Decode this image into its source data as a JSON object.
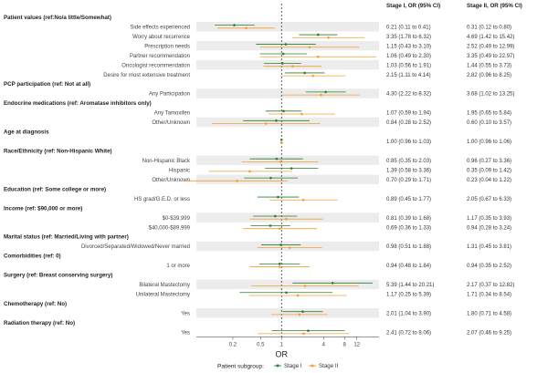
{
  "chart_data": {
    "type": "forest",
    "xlabel": "OR",
    "xscale": "log",
    "xlim": [
      0.06,
      25
    ],
    "xticks": [
      "0.2",
      "0.5",
      "1",
      "4",
      "8",
      "12"
    ],
    "reference_line": 1,
    "column_headers": [
      "Stage I, OR (95% CI)",
      "Stage II, OR (95% CI)"
    ],
    "legend": {
      "title": "Patient subgroup:",
      "placement": "bottom"
    },
    "series": [
      {
        "name": "Stage I",
        "color": "#2e7d32"
      },
      {
        "name": "Stage II",
        "color": "#f0a030"
      }
    ],
    "rows": [
      {
        "type": "header",
        "label": "Patient values (ref:No/a little/Somewhat)"
      },
      {
        "type": "item",
        "label": "Side effects experienced",
        "s1": [
          0.21,
          0.11,
          0.41
        ],
        "s2": [
          0.31,
          0.12,
          0.8
        ],
        "s1_text": "0.21 (0.11 to 0.41)",
        "s2_text": "0.31 (0.12 to 0.80)"
      },
      {
        "type": "item",
        "label": "Worry about recurrence",
        "s1": [
          3.35,
          1.78,
          6.32
        ],
        "s2": [
          4.69,
          1.42,
          15.42
        ],
        "s1_text": "3.35 (1.78 to 6.32)",
        "s2_text": "4.69 (1.42 to 15.42)"
      },
      {
        "type": "item",
        "label": "Prescription needs",
        "s1": [
          1.15,
          0.43,
          3.1
        ],
        "s2": [
          2.52,
          0.49,
          12.99
        ],
        "s1_text": "1.15 (0.43 to 3.10)",
        "s2_text": "2.52 (0.49 to 12.99)"
      },
      {
        "type": "item",
        "label": "Partner recommendation",
        "s1": [
          1.06,
          0.49,
          2.3
        ],
        "s2": [
          3.35,
          0.49,
          22.97
        ],
        "s1_text": "1.06 (0.49 to 2.30)",
        "s2_text": "3.35 (0.49 to 22.97)"
      },
      {
        "type": "item",
        "label": "Oncologist recommendation",
        "s1": [
          1.03,
          0.56,
          1.91
        ],
        "s2": [
          1.44,
          0.55,
          3.73
        ],
        "s1_text": "1.03 (0.56 to 1.91)",
        "s2_text": "1.44 (0.55 to 3.73)"
      },
      {
        "type": "item",
        "label": "Desire for most extensive treatment",
        "s1": [
          2.15,
          1.11,
          4.14
        ],
        "s2": [
          2.82,
          0.96,
          8.25
        ],
        "s1_text": "2.15 (1.11 to 4.14)",
        "s2_text": "2.82 (0.96 to 8.25)"
      },
      {
        "type": "header",
        "label": "PCP participation (ref: Not at all)"
      },
      {
        "type": "item",
        "label": "Any Participation",
        "s1": [
          4.3,
          2.22,
          8.32
        ],
        "s2": [
          3.68,
          1.02,
          13.25
        ],
        "s1_text": "4.30 (2.22 to 8.32)",
        "s2_text": "3.68 (1.02 to 13.25)"
      },
      {
        "type": "header",
        "label": "Endocrine medications (ref: Aromatase inhibitors only)"
      },
      {
        "type": "item",
        "label": "Any Tamoxifen",
        "s1": [
          1.07,
          0.59,
          1.94
        ],
        "s2": [
          1.95,
          0.65,
          5.84
        ],
        "s1_text": "1.07 (0.59 to 1.94)",
        "s2_text": "1.95 (0.65 to 5.84)"
      },
      {
        "type": "item",
        "label": "Other/Unknown",
        "s1": [
          0.84,
          0.28,
          2.52
        ],
        "s2": [
          0.6,
          0.1,
          3.57
        ],
        "s1_text": "0.84 (0.28 to 2.52)",
        "s2_text": "0.60 (0.10 to 3.57)"
      },
      {
        "type": "header",
        "label": "Age at diagnosis"
      },
      {
        "type": "item",
        "label": "",
        "s1": [
          1.0,
          0.96,
          1.03
        ],
        "s2": [
          1.0,
          0.96,
          1.06
        ],
        "s1_text": "1.00 (0.96 to 1.03)",
        "s2_text": "1.00 (0.96 to 1.06)"
      },
      {
        "type": "header",
        "label": "Race/Ethnicity (ref: Non-Hispanic White)"
      },
      {
        "type": "item",
        "label": "Non-Hispanic Black",
        "s1": [
          0.85,
          0.35,
          2.03
        ],
        "s2": [
          0.96,
          0.27,
          3.36
        ],
        "s1_text": "0.85 (0.35 to 2.03)",
        "s2_text": "0.96 (0.27 to 3.36)"
      },
      {
        "type": "item",
        "label": "Hispanic",
        "s1": [
          1.39,
          0.58,
          3.36
        ],
        "s2": [
          0.35,
          0.09,
          1.42
        ],
        "s1_text": "1.39 (0.58 to 3.36)",
        "s2_text": "0.35 (0.09 to 1.42)"
      },
      {
        "type": "item",
        "label": "Other/Unknown",
        "s1": [
          0.7,
          0.29,
          1.71
        ],
        "s2": [
          0.23,
          0.04,
          1.22
        ],
        "s1_text": "0.70 (0.29 to 1.71)",
        "s2_text": "0.23 (0.04 to 1.22)"
      },
      {
        "type": "header",
        "label": "Education (ref: Some college or more)"
      },
      {
        "type": "item",
        "label": "HS grad/G.E.D. or less",
        "s1": [
          0.89,
          0.45,
          1.77
        ],
        "s2": [
          2.05,
          0.67,
          6.33
        ],
        "s1_text": "0.89 (0.45 to 1.77)",
        "s2_text": "2.05 (0.67 to 6.33)"
      },
      {
        "type": "header",
        "label": "Income (ref: $90,000 or more)"
      },
      {
        "type": "item",
        "label": "$0-$39,999",
        "s1": [
          0.81,
          0.39,
          1.68
        ],
        "s2": [
          1.17,
          0.35,
          3.93
        ],
        "s1_text": "0.81 (0.39 to 1.68)",
        "s2_text": "1.17 (0.35 to 3.93)"
      },
      {
        "type": "item",
        "label": "$40,000-$89,999",
        "s1": [
          0.69,
          0.36,
          1.33
        ],
        "s2": [
          0.94,
          0.28,
          3.24
        ],
        "s1_text": "0.69 (0.36 to 1.33)",
        "s2_text": "0.94 (0.28 to 3.24)"
      },
      {
        "type": "header",
        "label": "Marital status (ref: Married/Living with partner)"
      },
      {
        "type": "item",
        "label": "Divorced/Separated/Widowed/Never married",
        "s1": [
          0.98,
          0.51,
          1.88
        ],
        "s2": [
          1.31,
          0.45,
          3.81
        ],
        "s1_text": "0.98 (0.51 to 1.88)",
        "s2_text": "1.31 (0.45 to 3.81)"
      },
      {
        "type": "header",
        "label": "Comorbidities (ref: 0)"
      },
      {
        "type": "item",
        "label": "1 or more",
        "s1": [
          0.94,
          0.48,
          1.84
        ],
        "s2": [
          0.94,
          0.35,
          2.52
        ],
        "s1_text": "0.94 (0.48 to 1.84)",
        "s2_text": "0.94 (0.35 to 2.52)"
      },
      {
        "type": "header",
        "label": "Surgery (ref: Breast conserving surgery)"
      },
      {
        "type": "item",
        "label": "Bilateral Mastectomy",
        "s1": [
          5.39,
          1.44,
          20.21
        ],
        "s2": [
          2.17,
          0.37,
          12.82
        ],
        "s1_text": "5.39 (1.44 to 20.21)",
        "s2_text": "2.17 (0.37 to 12.82)"
      },
      {
        "type": "item",
        "label": "Unilateral Mastectomy",
        "s1": [
          1.17,
          0.25,
          5.39
        ],
        "s2": [
          1.71,
          0.34,
          8.54
        ],
        "s1_text": "1.17 (0.25 to 5.39)",
        "s2_text": "1.71 (0.34 to 8.54)"
      },
      {
        "type": "header",
        "label": "Chemotherapy (ref: No)"
      },
      {
        "type": "item",
        "label": "Yes",
        "s1": [
          2.01,
          1.04,
          3.9
        ],
        "s2": [
          1.8,
          0.71,
          4.58
        ],
        "s1_text": "2.01 (1.04 to 3.90)",
        "s2_text": "1.80 (0.71 to 4.58)"
      },
      {
        "type": "header",
        "label": "Radiation therapy (ref: No)"
      },
      {
        "type": "item",
        "label": "Yes",
        "s1": [
          2.41,
          0.72,
          8.06
        ],
        "s2": [
          2.07,
          0.46,
          9.25
        ],
        "s1_text": "2.41 (0.72 to 8.06)",
        "s2_text": "2.07 (0.46 to 9.25)"
      }
    ]
  }
}
